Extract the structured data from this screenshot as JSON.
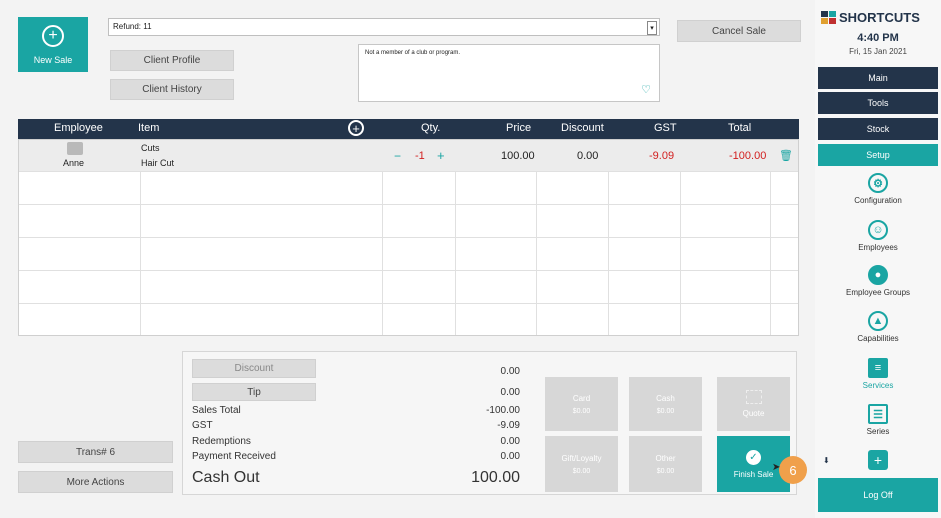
{
  "top": {
    "new_sale_label": "New Sale",
    "refund_value": "Refund: 11",
    "cancel_sale_label": "Cancel Sale",
    "client_profile_label": "Client Profile",
    "client_history_label": "Client History",
    "note_text": "Not a member of a club or program."
  },
  "table": {
    "headers": {
      "employee": "Employee",
      "item": "Item",
      "qty": "Qty.",
      "price": "Price",
      "discount": "Discount",
      "gst": "GST",
      "total": "Total"
    },
    "rows": [
      {
        "employee": "Anne",
        "item_category": "Cuts",
        "item_name": "Hair Cut",
        "qty_minus": "−",
        "qty": "-1",
        "qty_plus": "+",
        "price": "100.00",
        "discount": "0.00",
        "gst": "-9.09",
        "total": "-100.00"
      }
    ]
  },
  "summary": {
    "discount_btn": "Discount",
    "discount_val": "0.00",
    "tip_btn": "Tip",
    "tip_val": "0.00",
    "sales_total_lbl": "Sales Total",
    "sales_total_val": "-100.00",
    "gst_lbl": "GST",
    "gst_val": "-9.09",
    "redemptions_lbl": "Redemptions",
    "redemptions_val": "0.00",
    "payment_lbl": "Payment Received",
    "payment_val": "0.00",
    "cashout_lbl": "Cash Out",
    "cashout_val": "100.00"
  },
  "payments": {
    "card_label": "Card",
    "card_amount": "$0.00",
    "cash_label": "Cash",
    "cash_amount": "$0.00",
    "gift_label": "Gift/Loyalty",
    "gift_amount": "$0.00",
    "other_label": "Other",
    "other_amount": "$0.00",
    "quote_label": "Quote",
    "finish_label": "Finish Sale"
  },
  "left_bottom": {
    "trans_label": "Trans# 6",
    "more_actions_label": "More Actions"
  },
  "badge": "6",
  "sidebar": {
    "brand": "SHORTCUTS",
    "time": "4:40 PM",
    "date": "Fri, 15 Jan 2021",
    "nav": [
      "Main",
      "Tools",
      "Stock",
      "Setup"
    ],
    "items": [
      "Configuration",
      "Employees",
      "Employee Groups",
      "Capabilities",
      "Services",
      "Series"
    ],
    "logoff": "Log Off"
  },
  "colors": {
    "teal": "#1aa5a3",
    "navy": "#23344a",
    "negative": "#d21f1f",
    "badge": "#f0a04b"
  }
}
